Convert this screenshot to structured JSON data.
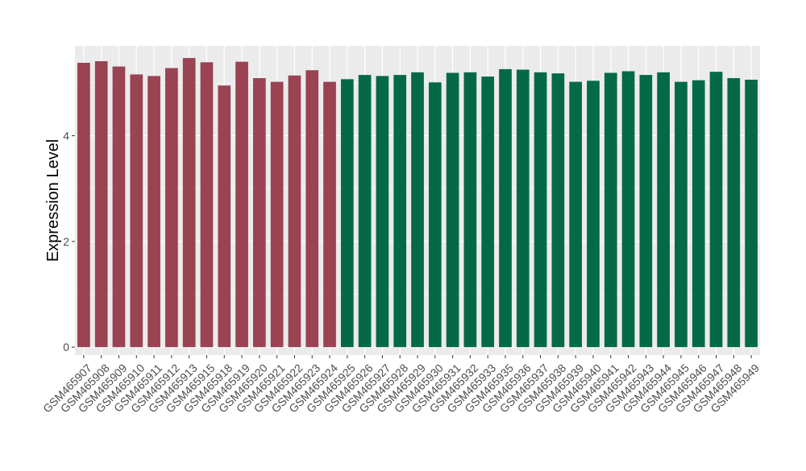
{
  "chart_data": {
    "type": "bar",
    "ylabel": "Expression Level",
    "ylim": [
      -0.15,
      5.7
    ],
    "y_ticks": [
      0,
      2,
      4
    ],
    "grid": true,
    "panel_background": "#ebebeb",
    "categories": [
      "GSM465907",
      "GSM465908",
      "GSM465909",
      "GSM465910",
      "GSM465911",
      "GSM465912",
      "GSM465913",
      "GSM465915",
      "GSM465918",
      "GSM465919",
      "GSM465920",
      "GSM465921",
      "GSM465922",
      "GSM465923",
      "GSM465924",
      "GSM465925",
      "GSM465926",
      "GSM465927",
      "GSM465928",
      "GSM465929",
      "GSM465930",
      "GSM465931",
      "GSM465932",
      "GSM465933",
      "GSM465935",
      "GSM465936",
      "GSM465937",
      "GSM465938",
      "GSM465939",
      "GSM465940",
      "GSM465941",
      "GSM465942",
      "GSM465943",
      "GSM465944",
      "GSM465945",
      "GSM465946",
      "GSM465947",
      "GSM465948",
      "GSM465949"
    ],
    "values": [
      5.38,
      5.41,
      5.31,
      5.16,
      5.13,
      5.28,
      5.47,
      5.39,
      4.95,
      5.4,
      5.09,
      5.02,
      5.14,
      5.24,
      5.02,
      5.07,
      5.15,
      5.13,
      5.15,
      5.2,
      5.01,
      5.19,
      5.2,
      5.12,
      5.26,
      5.25,
      5.2,
      5.18,
      5.02,
      5.04,
      5.19,
      5.22,
      5.15,
      5.2,
      5.02,
      5.05,
      5.21,
      5.09,
      5.06
    ],
    "bar_colors": [
      "#9a4352",
      "#9a4352",
      "#9a4352",
      "#9a4352",
      "#9a4352",
      "#9a4352",
      "#9a4352",
      "#9a4352",
      "#9a4352",
      "#9a4352",
      "#9a4352",
      "#9a4352",
      "#9a4352",
      "#9a4352",
      "#9a4352",
      "#046a46",
      "#046a46",
      "#046a46",
      "#046a46",
      "#046a46",
      "#046a46",
      "#046a46",
      "#046a46",
      "#046a46",
      "#046a46",
      "#046a46",
      "#046a46",
      "#046a46",
      "#046a46",
      "#046a46",
      "#046a46",
      "#046a46",
      "#046a46",
      "#046a46",
      "#046a46",
      "#046a46",
      "#046a46",
      "#046a46",
      "#046a46"
    ]
  }
}
